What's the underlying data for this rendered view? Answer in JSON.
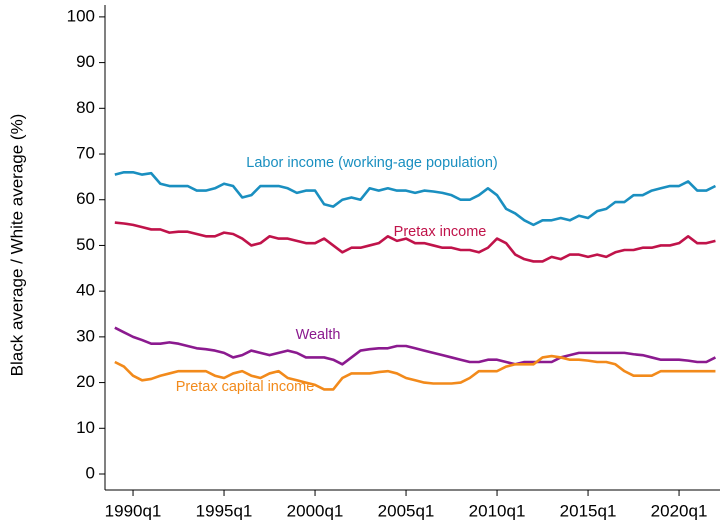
{
  "chart_data": {
    "type": "line",
    "y_label": "Black average / White average (%)",
    "x": [
      1989,
      1989.5,
      1990,
      1990.5,
      1991,
      1991.5,
      1992,
      1992.5,
      1993,
      1993.5,
      1994,
      1994.5,
      1995,
      1995.5,
      1996,
      1996.5,
      1997,
      1997.5,
      1998,
      1998.5,
      1999,
      1999.5,
      2000,
      2000.5,
      2001,
      2001.5,
      2002,
      2002.5,
      2003,
      2003.5,
      2004,
      2004.5,
      2005,
      2005.5,
      2006,
      2006.5,
      2007,
      2007.5,
      2008,
      2008.5,
      2009,
      2009.5,
      2010,
      2010.5,
      2011,
      2011.5,
      2012,
      2012.5,
      2013,
      2013.5,
      2014,
      2014.5,
      2015,
      2015.5,
      2016,
      2016.5,
      2017,
      2017.5,
      2018,
      2018.5,
      2019,
      2019.5,
      2020,
      2020.5,
      2021,
      2021.5,
      2022
    ],
    "series": [
      {
        "name": "Labor income (working-age population)",
        "color": "#1a8fc0",
        "values": [
          65.5,
          66,
          66,
          65.5,
          65.8,
          63.5,
          63,
          63,
          63,
          62,
          62,
          62.5,
          63.5,
          63,
          60.5,
          61,
          63,
          63,
          63,
          62.5,
          61.5,
          62,
          62,
          59,
          58.5,
          60,
          60.5,
          60,
          62.5,
          62,
          62.5,
          62,
          62,
          61.5,
          62,
          61.8,
          61.5,
          61,
          60,
          60,
          61,
          62.5,
          61,
          58,
          57,
          55.5,
          54.5,
          55.5,
          55.5,
          56,
          55.5,
          56.5,
          56,
          57.5,
          58,
          59.5,
          59.5,
          61,
          61,
          62,
          62.5,
          63,
          63,
          64,
          62,
          62,
          63
        ]
      },
      {
        "name": "Pretax income",
        "color": "#c0134a",
        "values": [
          55,
          54.8,
          54.5,
          54,
          53.5,
          53.5,
          52.8,
          53,
          53,
          52.5,
          52,
          52,
          52.8,
          52.5,
          51.5,
          50,
          50.5,
          52,
          51.5,
          51.5,
          51,
          50.5,
          50.5,
          51.5,
          50,
          48.5,
          49.5,
          49.5,
          50,
          50.5,
          52,
          51,
          51.5,
          50.5,
          50.5,
          50,
          49.5,
          49.5,
          49,
          49,
          48.5,
          49.5,
          51.5,
          50.5,
          48,
          47,
          46.5,
          46.5,
          47.5,
          47,
          48,
          48,
          47.5,
          48,
          47.5,
          48.5,
          49,
          49,
          49.5,
          49.5,
          50,
          50,
          50.5,
          52,
          50.5,
          50.5,
          51
        ]
      },
      {
        "name": "Wealth",
        "color": "#8b1a8f",
        "values": [
          32,
          31,
          30,
          29.3,
          28.5,
          28.5,
          28.8,
          28.5,
          28,
          27.5,
          27.3,
          27,
          26.5,
          25.5,
          26,
          27,
          26.5,
          26,
          26.5,
          27,
          26.5,
          25.5,
          25.5,
          25.5,
          25,
          24,
          25.5,
          27,
          27.3,
          27.5,
          27.5,
          28,
          28,
          27.5,
          27,
          26.5,
          26,
          25.5,
          25,
          24.5,
          24.5,
          25,
          25,
          24.5,
          24,
          24.5,
          24.5,
          24.5,
          24.5,
          25.5,
          26,
          26.5,
          26.5,
          26.5,
          26.5,
          26.5,
          26.5,
          26.2,
          26,
          25.5,
          25,
          25,
          25,
          24.8,
          24.5,
          24.5,
          25.5
        ]
      },
      {
        "name": "Pretax capital income",
        "color": "#f28a1b",
        "values": [
          24.5,
          23.5,
          21.5,
          20.5,
          20.8,
          21.5,
          22,
          22.5,
          22.5,
          22.5,
          22.5,
          21.5,
          21,
          22,
          22.5,
          21.5,
          21,
          22,
          22.5,
          21,
          20.5,
          20,
          19.5,
          18.5,
          18.5,
          21,
          22,
          22,
          22,
          22.3,
          22.5,
          22,
          21,
          20.5,
          20,
          19.8,
          19.8,
          19.8,
          20,
          21,
          22.5,
          22.5,
          22.5,
          23.5,
          24,
          24,
          24,
          25.5,
          25.8,
          25.5,
          25,
          25,
          24.8,
          24.5,
          24.5,
          24,
          22.5,
          21.5,
          21.5,
          21.5,
          22.5,
          22.5,
          22.5,
          22.5,
          22.5,
          22.5,
          22.5
        ]
      }
    ],
    "xlim": [
      1988.46,
      2022.25
    ],
    "ylim": [
      -3.5,
      102.6
    ],
    "xticks": [
      {
        "value": 1990,
        "label": "1990q1"
      },
      {
        "value": 1995,
        "label": "1995q1"
      },
      {
        "value": 2000,
        "label": "2000q1"
      },
      {
        "value": 2005,
        "label": "2005q1"
      },
      {
        "value": 2010,
        "label": "2010q1"
      },
      {
        "value": 2015,
        "label": "2015q1"
      },
      {
        "value": 2020,
        "label": "2020q1"
      }
    ],
    "yticks": [
      0,
      10,
      20,
      30,
      40,
      50,
      60,
      70,
      80,
      90,
      100
    ],
    "grid": false
  }
}
